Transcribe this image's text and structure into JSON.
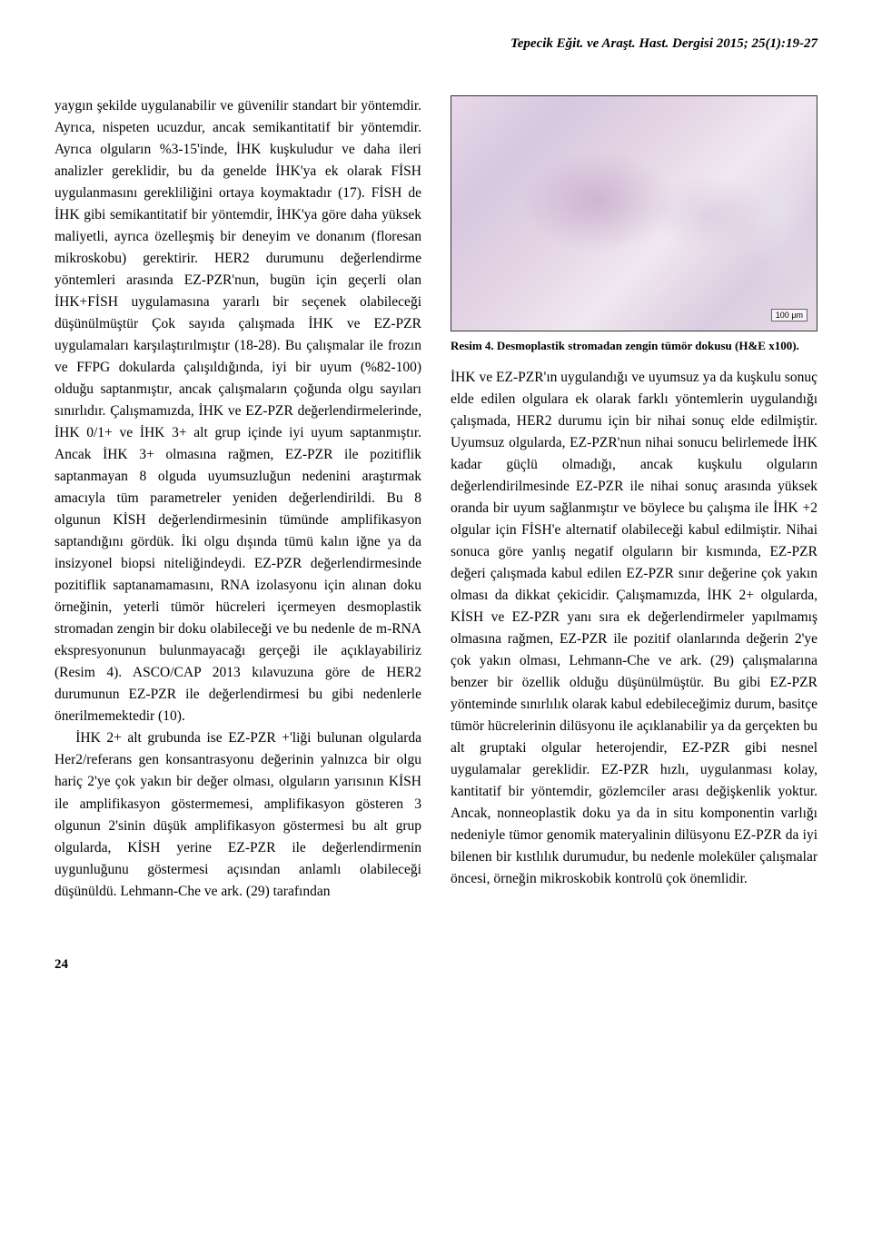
{
  "journal_header": "Tepecik Eğit. ve Araşt. Hast. Dergisi 2015; 25(1):19-27",
  "left_col": {
    "p1": "yaygın şekilde uygulanabilir ve güvenilir standart bir yöntemdir. Ayrıca, nispeten ucuzdur, ancak semikantitatif bir yöntemdir. Ayrıca olguların %3-15'inde, İHK kuşkuludur ve daha ileri analizler gereklidir, bu da genelde İHK'ya ek olarak FİSH uygulanmasını gerekliliğini ortaya koymaktadır (17). FİSH de İHK gibi semikantitatif bir yöntemdir, İHK'ya göre daha yüksek maliyetli, ayrıca özelleşmiş bir deneyim ve donanım (floresan mikroskobu) gerektirir. HER2 durumunu değerlendirme yöntemleri arasında EZ-PZR'nun, bugün için geçerli olan İHK+FİSH uygulamasına yararlı bir seçenek olabileceği düşünülmüştür Çok sayıda çalışmada İHK ve EZ-PZR uygulamaları karşılaştırılmıştır (18-28). Bu çalışmalar ile frozın ve FFPG dokularda çalışıldığında, iyi bir uyum (%82-100) olduğu saptanmıştır, ancak çalışmaların çoğunda olgu sayıları sınırlıdır. Çalışmamızda, İHK ve EZ-PZR değerlendirmelerinde, İHK 0/1+ ve İHK 3+ alt grup içinde iyi uyum saptanmıştır. Ancak İHK 3+ olmasına rağmen, EZ-PZR ile pozitiflik saptanmayan 8 olguda uyumsuzluğun nedenini araştırmak amacıyla tüm parametreler yeniden değerlendirildi. Bu 8 olgunun KİSH değerlendirmesinin tümünde amplifikasyon saptandığını gördük. İki olgu dışında tümü kalın iğne ya da insizyonel biopsi niteliğindeydi. EZ-PZR değerlendirmesinde pozitiflik saptanamamasını, RNA izolasyonu için alınan doku örneğinin, yeterli tümör hücreleri içermeyen desmoplastik stromadan zengin bir doku olabileceği ve bu nedenle de m-RNA ekspresyonunun bulunmayacağı gerçeği ile açıklayabiliriz (Resim 4). ASCO/CAP 2013 kılavuzuna göre de HER2 durumunun EZ-PZR ile değerlendirmesi bu gibi nedenlerle önerilmemektedir (10).",
    "p2": "İHK 2+ alt grubunda ise EZ-PZR +'liği bulunan olgularda Her2/referans gen konsantrasyonu değerinin yalnızca bir olgu hariç 2'ye çok yakın bir değer olması, olguların yarısının KİSH ile amplifikasyon göstermemesi, amplifikasyon gösteren 3 olgunun 2'sinin düşük amplifikasyon göstermesi bu alt grup olgularda, KİSH yerine EZ-PZR ile değerlendirmenin uygunluğunu göstermesi açısından anlamlı olabileceği düşünüldü. Lehmann-Che ve ark. (29) tarafından"
  },
  "figure": {
    "scale_label": "100 μm",
    "caption": "Resim 4. Desmoplastik stromadan zengin tümör dokusu (H&E x100)."
  },
  "right_col": {
    "p1": "İHK ve EZ-PZR'ın uygulandığı ve uyumsuz ya da kuşkulu sonuç elde edilen olgulara ek olarak farklı yöntemlerin uygulandığı çalışmada, HER2 durumu için bir nihai sonuç elde edilmiştir. Uyumsuz olgularda, EZ-PZR'nun nihai sonucu belirlemede İHK kadar güçlü olmadığı, ancak kuşkulu olguların değerlendirilmesinde EZ-PZR ile nihai sonuç arasında yüksek oranda bir uyum sağlanmıştır ve böylece bu çalışma ile İHK +2 olgular için FİSH'e alternatif olabileceği kabul edilmiştir. Nihai sonuca göre yanlış negatif olguların bir kısmında, EZ-PZR değeri çalışmada kabul edilen EZ-PZR sınır değerine çok yakın olması da dikkat çekicidir. Çalışmamızda, İHK 2+ olgularda, KİSH ve EZ-PZR yanı sıra ek değerlendirmeler yapılmamış olmasına rağmen, EZ-PZR ile pozitif olanlarında değerin 2'ye çok yakın olması, Lehmann-Che ve ark. (29) çalışmalarına benzer bir özellik olduğu düşünülmüştür. Bu gibi EZ-PZR yönteminde sınırlılık olarak kabul edebileceğimiz durum, basitçe tümör hücrelerinin dilüsyonu ile açıklanabilir ya da gerçekten bu alt gruptaki olgular heterojendir, EZ-PZR gibi nesnel uygulamalar gereklidir. EZ-PZR hızlı, uygulanması kolay, kantitatif bir yöntemdir, gözlemciler arası değişkenlik yoktur. Ancak, nonneoplastik doku ya da in situ komponentin varlığı nedeniyle tümor genomik materyalinin dilüsyonu EZ-PZR da iyi bilenen bir kıstlılık durumudur, bu nedenle moleküler çalışmalar öncesi, örneğin mikroskobik kontrolü çok önemlidir."
  },
  "page_number": "24"
}
